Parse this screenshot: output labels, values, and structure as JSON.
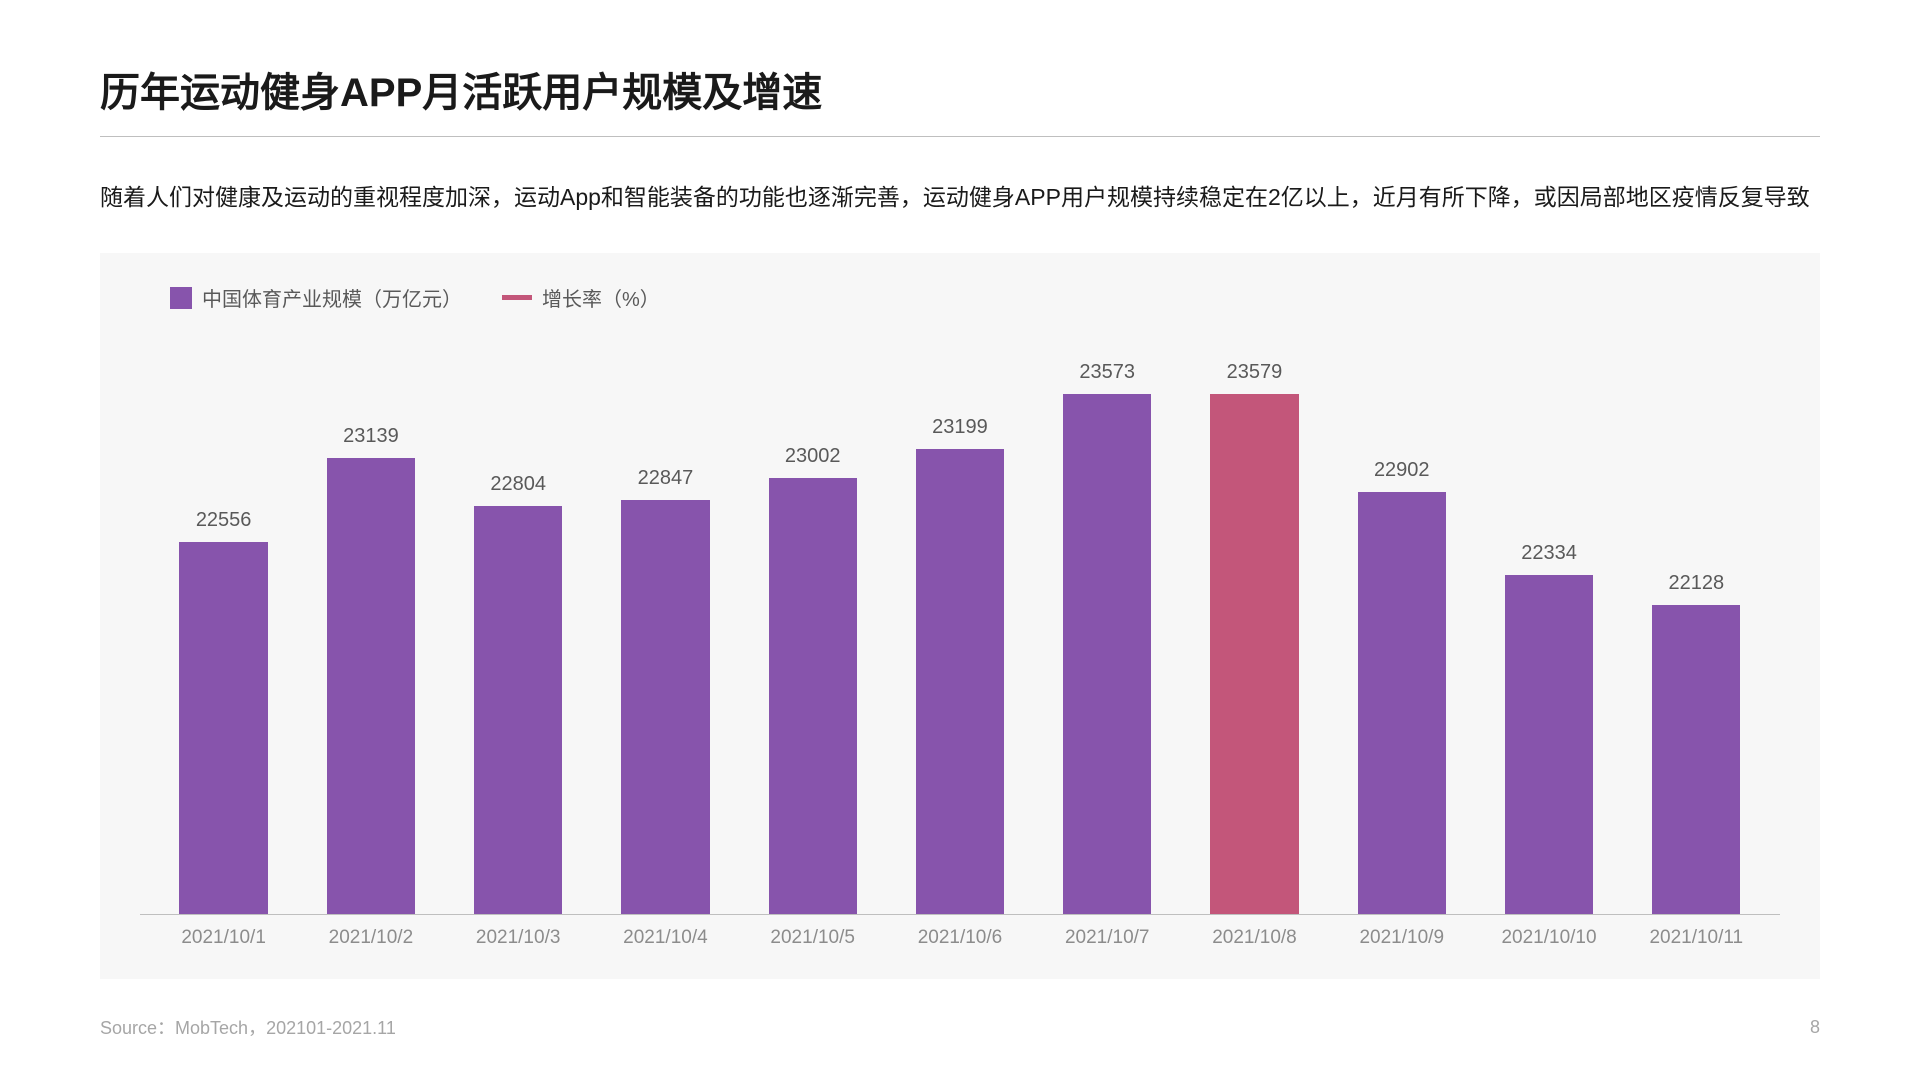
{
  "title": "历年运动健身APP月活跃用户规模及增速",
  "description": "随着人们对健康及运动的重视程度加深，运动App和智能装备的功能也逐渐完善，运动健身APP用户规模持续稳定在2亿以上，近月有所下降，或因局部地区疫情反复导致",
  "legend": {
    "series1": {
      "label": "中国体育产业规模（万亿元）",
      "color": "#8754ac"
    },
    "series2": {
      "label": "增长率（%）",
      "color": "#c3567a"
    }
  },
  "chart": {
    "type": "bar",
    "background_color": "#f7f7f7",
    "axis_color": "#bfbfbf",
    "label_color": "#595959",
    "xaxis_color": "#8c8c8c",
    "label_fontsize": 20,
    "xaxis_fontsize": 19,
    "bar_width_pct": 60,
    "y_min": 20000,
    "y_max": 24000,
    "categories": [
      "2021/10/1",
      "2021/10/2",
      "2021/10/3",
      "2021/10/4",
      "2021/10/5",
      "2021/10/6",
      "2021/10/7",
      "2021/10/8",
      "2021/10/9",
      "2021/10/10",
      "2021/10/11"
    ],
    "values": [
      22556,
      23139,
      22804,
      22847,
      23002,
      23199,
      23573,
      23579,
      22902,
      22334,
      22128
    ],
    "bar_colors": [
      "#8754ac",
      "#8754ac",
      "#8754ac",
      "#8754ac",
      "#8754ac",
      "#8754ac",
      "#8754ac",
      "#c3567a",
      "#8754ac",
      "#8754ac",
      "#8754ac"
    ]
  },
  "footer": {
    "source": "Source：MobTech，202101-2021.11",
    "page": "8"
  }
}
